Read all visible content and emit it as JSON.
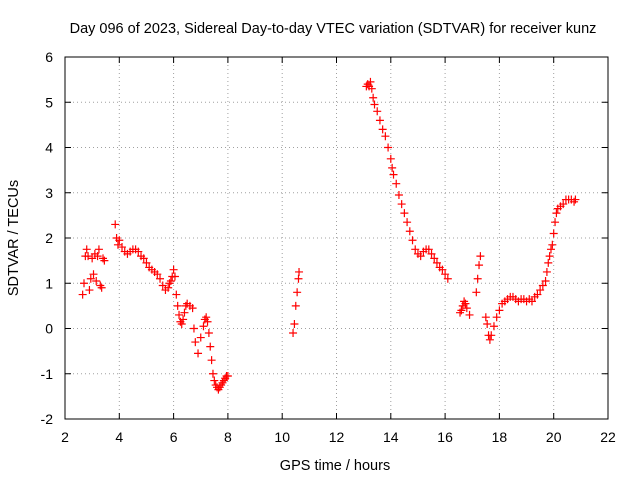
{
  "chart_data": {
    "type": "scatter",
    "title": "Day 096 of 2023, Sidereal Day-to-day VTEC variation (SDTVAR) for receiver kunz",
    "xlabel": "GPS time / hours",
    "ylabel": "SDTVAR / TECUs",
    "xlim": [
      2,
      22
    ],
    "ylim": [
      -2,
      6
    ],
    "xticks": [
      "2",
      "4",
      "6",
      "8",
      "10",
      "12",
      "14",
      "16",
      "18",
      "20",
      "22"
    ],
    "yticks": [
      "-2",
      "-1",
      "0",
      "1",
      "2",
      "3",
      "4",
      "5",
      "6"
    ],
    "grid": true,
    "marker": "plus",
    "color": "#ff0000",
    "series": [
      {
        "name": "SDTVAR",
        "points": [
          [
            2.65,
            0.75
          ],
          [
            2.7,
            1.0
          ],
          [
            2.75,
            1.6
          ],
          [
            2.8,
            1.75
          ],
          [
            2.85,
            1.6
          ],
          [
            2.9,
            0.85
          ],
          [
            2.95,
            1.1
          ],
          [
            3.0,
            1.55
          ],
          [
            3.05,
            1.2
          ],
          [
            3.1,
            1.65
          ],
          [
            3.15,
            1.05
          ],
          [
            3.2,
            1.6
          ],
          [
            3.25,
            1.75
          ],
          [
            3.3,
            0.95
          ],
          [
            3.35,
            0.9
          ],
          [
            3.4,
            1.55
          ],
          [
            3.45,
            1.5
          ],
          [
            3.85,
            2.3
          ],
          [
            3.9,
            2.0
          ],
          [
            3.95,
            1.85
          ],
          [
            4.0,
            1.95
          ],
          [
            4.1,
            1.8
          ],
          [
            4.2,
            1.7
          ],
          [
            4.3,
            1.65
          ],
          [
            4.4,
            1.7
          ],
          [
            4.5,
            1.75
          ],
          [
            4.6,
            1.75
          ],
          [
            4.7,
            1.7
          ],
          [
            4.8,
            1.6
          ],
          [
            4.9,
            1.55
          ],
          [
            5.0,
            1.45
          ],
          [
            5.1,
            1.35
          ],
          [
            5.2,
            1.3
          ],
          [
            5.3,
            1.25
          ],
          [
            5.4,
            1.2
          ],
          [
            5.5,
            1.1
          ],
          [
            5.6,
            0.95
          ],
          [
            5.7,
            0.85
          ],
          [
            5.8,
            0.9
          ],
          [
            5.85,
            1.0
          ],
          [
            5.9,
            1.05
          ],
          [
            5.95,
            1.15
          ],
          [
            6.0,
            1.3
          ],
          [
            6.05,
            1.15
          ],
          [
            6.1,
            0.75
          ],
          [
            6.15,
            0.5
          ],
          [
            6.2,
            0.3
          ],
          [
            6.25,
            0.15
          ],
          [
            6.3,
            0.1
          ],
          [
            6.35,
            0.2
          ],
          [
            6.4,
            0.35
          ],
          [
            6.45,
            0.5
          ],
          [
            6.5,
            0.55
          ],
          [
            6.6,
            0.5
          ],
          [
            6.7,
            0.45
          ],
          [
            6.75,
            0.0
          ],
          [
            6.8,
            -0.3
          ],
          [
            6.9,
            -0.55
          ],
          [
            7.0,
            -0.2
          ],
          [
            7.1,
            0.05
          ],
          [
            7.15,
            0.2
          ],
          [
            7.2,
            0.25
          ],
          [
            7.25,
            0.15
          ],
          [
            7.3,
            -0.1
          ],
          [
            7.35,
            -0.4
          ],
          [
            7.4,
            -0.7
          ],
          [
            7.45,
            -1.0
          ],
          [
            7.5,
            -1.15
          ],
          [
            7.55,
            -1.25
          ],
          [
            7.6,
            -1.3
          ],
          [
            7.65,
            -1.35
          ],
          [
            7.7,
            -1.3
          ],
          [
            7.75,
            -1.25
          ],
          [
            7.8,
            -1.2
          ],
          [
            7.85,
            -1.15
          ],
          [
            7.9,
            -1.1
          ],
          [
            7.95,
            -1.05
          ],
          [
            8.0,
            -1.05
          ],
          [
            10.4,
            -0.1
          ],
          [
            10.45,
            0.1
          ],
          [
            10.5,
            0.5
          ],
          [
            10.55,
            0.8
          ],
          [
            10.6,
            1.1
          ],
          [
            10.62,
            1.25
          ],
          [
            13.1,
            5.35
          ],
          [
            13.15,
            5.4
          ],
          [
            13.2,
            5.35
          ],
          [
            13.25,
            5.45
          ],
          [
            13.3,
            5.3
          ],
          [
            13.35,
            5.1
          ],
          [
            13.4,
            4.95
          ],
          [
            13.5,
            4.8
          ],
          [
            13.6,
            4.6
          ],
          [
            13.7,
            4.4
          ],
          [
            13.8,
            4.25
          ],
          [
            13.9,
            4.0
          ],
          [
            14.0,
            3.75
          ],
          [
            14.05,
            3.55
          ],
          [
            14.1,
            3.4
          ],
          [
            14.2,
            3.2
          ],
          [
            14.3,
            2.95
          ],
          [
            14.4,
            2.75
          ],
          [
            14.5,
            2.55
          ],
          [
            14.6,
            2.35
          ],
          [
            14.7,
            2.15
          ],
          [
            14.8,
            1.95
          ],
          [
            14.9,
            1.75
          ],
          [
            15.0,
            1.65
          ],
          [
            15.1,
            1.6
          ],
          [
            15.2,
            1.7
          ],
          [
            15.3,
            1.75
          ],
          [
            15.4,
            1.75
          ],
          [
            15.5,
            1.65
          ],
          [
            15.6,
            1.55
          ],
          [
            15.7,
            1.45
          ],
          [
            15.8,
            1.35
          ],
          [
            15.9,
            1.3
          ],
          [
            16.0,
            1.2
          ],
          [
            16.1,
            1.1
          ],
          [
            16.55,
            0.35
          ],
          [
            16.6,
            0.4
          ],
          [
            16.65,
            0.5
          ],
          [
            16.7,
            0.6
          ],
          [
            16.75,
            0.55
          ],
          [
            16.8,
            0.45
          ],
          [
            16.9,
            0.3
          ],
          [
            17.15,
            0.8
          ],
          [
            17.2,
            1.1
          ],
          [
            17.25,
            1.4
          ],
          [
            17.3,
            1.6
          ],
          [
            17.5,
            0.25
          ],
          [
            17.55,
            0.1
          ],
          [
            17.6,
            -0.15
          ],
          [
            17.65,
            -0.25
          ],
          [
            17.7,
            -0.15
          ],
          [
            17.8,
            0.05
          ],
          [
            17.9,
            0.25
          ],
          [
            18.0,
            0.4
          ],
          [
            18.1,
            0.55
          ],
          [
            18.2,
            0.6
          ],
          [
            18.3,
            0.65
          ],
          [
            18.4,
            0.7
          ],
          [
            18.5,
            0.7
          ],
          [
            18.6,
            0.65
          ],
          [
            18.7,
            0.6
          ],
          [
            18.8,
            0.65
          ],
          [
            18.9,
            0.65
          ],
          [
            19.0,
            0.6
          ],
          [
            19.1,
            0.65
          ],
          [
            19.2,
            0.6
          ],
          [
            19.3,
            0.7
          ],
          [
            19.4,
            0.75
          ],
          [
            19.5,
            0.85
          ],
          [
            19.6,
            0.95
          ],
          [
            19.7,
            1.05
          ],
          [
            19.75,
            1.25
          ],
          [
            19.8,
            1.45
          ],
          [
            19.85,
            1.6
          ],
          [
            19.9,
            1.75
          ],
          [
            19.95,
            1.85
          ],
          [
            20.0,
            2.1
          ],
          [
            20.05,
            2.35
          ],
          [
            20.1,
            2.55
          ],
          [
            20.15,
            2.65
          ],
          [
            20.25,
            2.7
          ],
          [
            20.35,
            2.75
          ],
          [
            20.45,
            2.85
          ],
          [
            20.55,
            2.85
          ],
          [
            20.65,
            2.85
          ],
          [
            20.75,
            2.8
          ],
          [
            20.8,
            2.85
          ]
        ]
      }
    ]
  }
}
